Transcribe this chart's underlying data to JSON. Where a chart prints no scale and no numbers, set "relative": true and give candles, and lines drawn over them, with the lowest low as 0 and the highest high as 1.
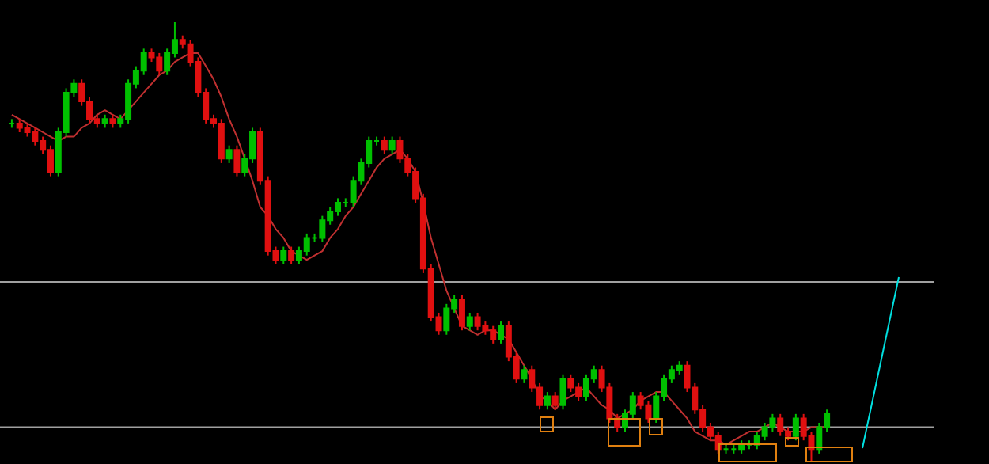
{
  "chart_data": {
    "type": "candlestick",
    "relative": true,
    "categories": [
      null,
      null,
      null,
      null,
      null,
      null,
      null,
      null,
      null,
      null,
      null,
      null,
      null,
      null,
      null,
      null,
      null,
      null,
      null,
      null,
      null,
      null,
      null,
      null,
      null,
      null,
      null,
      null,
      null,
      null,
      null,
      null,
      null,
      null,
      null,
      null,
      null,
      null,
      null,
      null,
      null,
      null,
      null,
      null,
      null,
      null,
      null,
      null,
      null,
      null,
      null,
      null,
      null,
      null,
      null,
      null,
      null,
      null,
      null,
      null,
      null,
      null,
      null,
      null,
      null,
      null,
      null,
      null,
      null,
      null,
      null,
      null,
      null,
      null,
      null,
      null,
      null,
      null,
      null,
      null,
      null,
      null,
      null,
      null,
      null,
      null,
      null,
      null,
      null,
      null,
      null,
      null,
      null,
      null,
      null,
      null,
      null,
      null,
      null,
      null,
      null,
      null,
      null,
      null,
      null,
      null
    ],
    "ohlc": [
      [
        0.77,
        0.78,
        0.76,
        0.77
      ],
      [
        0.77,
        0.78,
        0.75,
        0.76
      ],
      [
        0.76,
        0.77,
        0.74,
        0.75
      ],
      [
        0.75,
        0.76,
        0.72,
        0.73
      ],
      [
        0.73,
        0.74,
        0.7,
        0.71
      ],
      [
        0.71,
        0.72,
        0.65,
        0.66
      ],
      [
        0.66,
        0.76,
        0.65,
        0.75
      ],
      [
        0.75,
        0.85,
        0.74,
        0.84
      ],
      [
        0.84,
        0.87,
        0.83,
        0.86
      ],
      [
        0.86,
        0.87,
        0.81,
        0.82
      ],
      [
        0.82,
        0.83,
        0.77,
        0.78
      ],
      [
        0.78,
        0.79,
        0.76,
        0.77
      ],
      [
        0.77,
        0.79,
        0.76,
        0.78
      ],
      [
        0.78,
        0.79,
        0.76,
        0.77
      ],
      [
        0.77,
        0.79,
        0.76,
        0.78
      ],
      [
        0.78,
        0.87,
        0.77,
        0.86
      ],
      [
        0.86,
        0.9,
        0.85,
        0.89
      ],
      [
        0.89,
        0.94,
        0.88,
        0.93
      ],
      [
        0.93,
        0.94,
        0.91,
        0.92
      ],
      [
        0.92,
        0.93,
        0.88,
        0.89
      ],
      [
        0.89,
        0.94,
        0.88,
        0.93
      ],
      [
        0.93,
        1,
        0.92,
        0.96
      ],
      [
        0.96,
        0.97,
        0.94,
        0.95
      ],
      [
        0.95,
        0.96,
        0.9,
        0.91
      ],
      [
        0.91,
        0.92,
        0.83,
        0.84
      ],
      [
        0.84,
        0.85,
        0.77,
        0.78
      ],
      [
        0.78,
        0.79,
        0.76,
        0.77
      ],
      [
        0.77,
        0.78,
        0.68,
        0.69
      ],
      [
        0.69,
        0.72,
        0.68,
        0.71
      ],
      [
        0.71,
        0.72,
        0.65,
        0.66
      ],
      [
        0.66,
        0.7,
        0.65,
        0.69
      ],
      [
        0.69,
        0.76,
        0.68,
        0.75
      ],
      [
        0.75,
        0.76,
        0.63,
        0.64
      ],
      [
        0.64,
        0.65,
        0.47,
        0.48
      ],
      [
        0.48,
        0.49,
        0.45,
        0.46
      ],
      [
        0.46,
        0.49,
        0.45,
        0.48
      ],
      [
        0.48,
        0.49,
        0.45,
        0.46
      ],
      [
        0.46,
        0.49,
        0.45,
        0.48
      ],
      [
        0.48,
        0.52,
        0.47,
        0.51
      ],
      [
        0.51,
        0.52,
        0.5,
        0.51
      ],
      [
        0.51,
        0.56,
        0.5,
        0.55
      ],
      [
        0.55,
        0.58,
        0.54,
        0.57
      ],
      [
        0.57,
        0.6,
        0.56,
        0.59
      ],
      [
        0.59,
        0.6,
        0.58,
        0.59
      ],
      [
        0.59,
        0.65,
        0.58,
        0.64
      ],
      [
        0.64,
        0.69,
        0.63,
        0.68
      ],
      [
        0.68,
        0.74,
        0.67,
        0.73
      ],
      [
        0.73,
        0.74,
        0.72,
        0.73
      ],
      [
        0.73,
        0.74,
        0.7,
        0.71
      ],
      [
        0.71,
        0.74,
        0.7,
        0.73
      ],
      [
        0.73,
        0.74,
        0.68,
        0.69
      ],
      [
        0.69,
        0.7,
        0.65,
        0.66
      ],
      [
        0.66,
        0.67,
        0.59,
        0.6
      ],
      [
        0.6,
        0.61,
        0.43,
        0.44
      ],
      [
        0.44,
        0.45,
        0.32,
        0.33
      ],
      [
        0.33,
        0.34,
        0.29,
        0.3
      ],
      [
        0.3,
        0.36,
        0.29,
        0.35
      ],
      [
        0.35,
        0.38,
        0.34,
        0.37
      ],
      [
        0.37,
        0.38,
        0.3,
        0.31
      ],
      [
        0.31,
        0.34,
        0.3,
        0.33
      ],
      [
        0.33,
        0.34,
        0.3,
        0.31
      ],
      [
        0.31,
        0.32,
        0.29,
        0.3
      ],
      [
        0.3,
        0.31,
        0.27,
        0.28
      ],
      [
        0.28,
        0.32,
        0.27,
        0.31
      ],
      [
        0.31,
        0.32,
        0.23,
        0.24
      ],
      [
        0.24,
        0.25,
        0.18,
        0.19
      ],
      [
        0.19,
        0.22,
        0.18,
        0.21
      ],
      [
        0.21,
        0.22,
        0.16,
        0.17
      ],
      [
        0.17,
        0.18,
        0.12,
        0.13
      ],
      [
        0.13,
        0.16,
        0.12,
        0.15
      ],
      [
        0.15,
        0.16,
        0.12,
        0.13
      ],
      [
        0.13,
        0.2,
        0.12,
        0.19
      ],
      [
        0.19,
        0.2,
        0.16,
        0.17
      ],
      [
        0.17,
        0.18,
        0.14,
        0.15
      ],
      [
        0.15,
        0.2,
        0.14,
        0.19
      ],
      [
        0.19,
        0.22,
        0.18,
        0.21
      ],
      [
        0.21,
        0.22,
        0.16,
        0.17
      ],
      [
        0.17,
        0.18,
        0.09,
        0.1
      ],
      [
        0.1,
        0.11,
        0.07,
        0.08
      ],
      [
        0.08,
        0.12,
        0.07,
        0.11
      ],
      [
        0.11,
        0.16,
        0.1,
        0.15
      ],
      [
        0.15,
        0.16,
        0.12,
        0.13
      ],
      [
        0.13,
        0.14,
        0.09,
        0.1
      ],
      [
        0.1,
        0.16,
        0.09,
        0.15
      ],
      [
        0.15,
        0.2,
        0.14,
        0.19
      ],
      [
        0.19,
        0.22,
        0.18,
        0.21
      ],
      [
        0.21,
        0.23,
        0.2,
        0.22
      ],
      [
        0.22,
        0.23,
        0.16,
        0.17
      ],
      [
        0.17,
        0.18,
        0.11,
        0.12
      ],
      [
        0.12,
        0.13,
        0.07,
        0.08
      ],
      [
        0.08,
        0.09,
        0.05,
        0.06
      ],
      [
        0.06,
        0.07,
        0.02,
        0.03
      ],
      [
        0.03,
        0.04,
        0.02,
        0.03
      ],
      [
        0.03,
        0.04,
        0.02,
        0.03
      ],
      [
        0.03,
        0.05,
        0.02,
        0.04
      ],
      [
        0.04,
        0.05,
        0.03,
        0.04
      ],
      [
        0.04,
        0.07,
        0.03,
        0.06
      ],
      [
        0.06,
        0.09,
        0.05,
        0.08
      ],
      [
        0.08,
        0.11,
        0.07,
        0.1
      ],
      [
        0.1,
        0.11,
        0.06,
        0.07
      ],
      [
        0.07,
        0.08,
        0.05,
        0.06
      ],
      [
        0.06,
        0.11,
        0.05,
        0.1
      ],
      [
        0.1,
        0.11,
        0.05,
        0.06
      ],
      [
        0.06,
        0.07,
        0,
        0.03
      ],
      [
        0.03,
        0.09,
        0.02,
        0.08
      ],
      [
        0.08,
        0.12,
        0.07,
        0.11
      ]
    ],
    "series": [
      {
        "type": "line",
        "color": "#c03030",
        "values": [
          0.79,
          0.78,
          0.77,
          0.76,
          0.75,
          0.74,
          0.73,
          0.74,
          0.74,
          0.76,
          0.77,
          0.79,
          0.8,
          0.79,
          0.78,
          0.8,
          0.82,
          0.84,
          0.86,
          0.88,
          0.89,
          0.91,
          0.92,
          0.93,
          0.93,
          0.9,
          0.87,
          0.83,
          0.78,
          0.74,
          0.69,
          0.64,
          0.58,
          0.56,
          0.53,
          0.51,
          0.48,
          0.47,
          0.46,
          0.47,
          0.48,
          0.51,
          0.53,
          0.56,
          0.58,
          0.61,
          0.64,
          0.67,
          0.69,
          0.7,
          0.71,
          0.69,
          0.66,
          0.59,
          0.51,
          0.45,
          0.39,
          0.35,
          0.31,
          0.3,
          0.29,
          0.3,
          0.3,
          0.29,
          0.28,
          0.25,
          0.22,
          0.19,
          0.15,
          0.14,
          0.12,
          0.14,
          0.15,
          0.16,
          0.17,
          0.15,
          0.13,
          0.12,
          0.1,
          0.11,
          0.12,
          0.14,
          0.15,
          0.16,
          0.16,
          0.14,
          0.12,
          0.1,
          0.07,
          0.06,
          0.05,
          0.05,
          0.04,
          0.05,
          0.06,
          0.07,
          0.07,
          0.08,
          0.09,
          0.08,
          0.07,
          0.07,
          0.07,
          0.08,
          0.08,
          0.08
        ]
      }
    ],
    "ref_lines": [
      {
        "axis": "y",
        "value": 0.41,
        "color": "#a0a0a0"
      },
      {
        "axis": "y",
        "value": 0.08,
        "color": "#a0a0a0"
      }
    ]
  }
}
